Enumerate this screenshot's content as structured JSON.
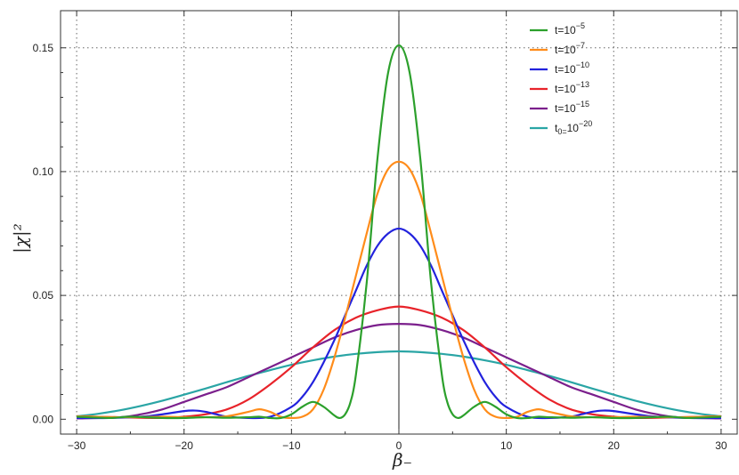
{
  "chart_data": {
    "type": "line",
    "xlabel": "β₋",
    "ylabel": "|χ|²",
    "xlim": [
      -31.5,
      31.5
    ],
    "ylim": [
      -0.006,
      0.165
    ],
    "x_ticks": [
      -30,
      -20,
      -10,
      0,
      10,
      20,
      30
    ],
    "x_tick_labels": [
      "−30",
      "−20",
      "−10",
      "0",
      "10",
      "20",
      "30"
    ],
    "y_ticks": [
      0.0,
      0.05,
      0.1,
      0.15
    ],
    "y_tick_labels": [
      "0.00",
      "0.05",
      "0.10",
      "0.15"
    ],
    "grid": "dotted",
    "legend_position": "top-right",
    "series": [
      {
        "name": "t=10⁻⁵",
        "label_main": "t=10",
        "label_sup": "−5",
        "label_sub": "",
        "color": "#2ca02c",
        "x": [
          -30,
          -27,
          -25,
          -22,
          -20,
          -18,
          -16,
          -14,
          -13,
          -12,
          -11,
          -10,
          -9,
          -8,
          -7,
          -6,
          -5.5,
          -5,
          -4.5,
          -4,
          -3,
          -2,
          -1,
          0,
          1,
          2,
          3,
          4,
          4.5,
          5,
          5.5,
          6,
          7,
          8,
          9,
          10,
          11,
          12,
          13,
          14,
          16,
          18,
          20,
          22,
          25,
          27,
          30
        ],
        "y": [
          0.001,
          0.0005,
          0.001,
          0.0005,
          0.0005,
          0.0008,
          0.0006,
          0.0008,
          0.001,
          0.0005,
          0.0005,
          0.002,
          0.005,
          0.007,
          0.005,
          0.0015,
          0.0005,
          0.002,
          0.007,
          0.018,
          0.055,
          0.105,
          0.14,
          0.151,
          0.14,
          0.105,
          0.055,
          0.018,
          0.007,
          0.002,
          0.0005,
          0.0015,
          0.005,
          0.007,
          0.005,
          0.002,
          0.0005,
          0.0005,
          0.001,
          0.0008,
          0.0006,
          0.0008,
          0.0005,
          0.0005,
          0.001,
          0.0005,
          0.001
        ]
      },
      {
        "name": "t=10⁻⁷",
        "label_main": "t=10",
        "label_sup": "−7",
        "label_sub": "",
        "color": "#ff8c1a",
        "x": [
          -30,
          -26,
          -22,
          -20,
          -18,
          -16,
          -14,
          -13,
          -12,
          -11,
          -10,
          -9,
          -8,
          -7,
          -6,
          -5,
          -4,
          -3,
          -2,
          -1,
          0,
          1,
          2,
          3,
          4,
          5,
          6,
          7,
          8,
          9,
          10,
          11,
          12,
          13,
          14,
          16,
          18,
          20,
          22,
          26,
          30
        ],
        "y": [
          0.0012,
          0.0008,
          0.001,
          0.0008,
          0.0008,
          0.0012,
          0.003,
          0.004,
          0.003,
          0.001,
          0.0005,
          0.001,
          0.004,
          0.012,
          0.025,
          0.041,
          0.058,
          0.075,
          0.091,
          0.101,
          0.104,
          0.101,
          0.091,
          0.075,
          0.058,
          0.041,
          0.025,
          0.012,
          0.004,
          0.001,
          0.0005,
          0.001,
          0.003,
          0.004,
          0.003,
          0.0012,
          0.0008,
          0.0008,
          0.001,
          0.0008,
          0.0012
        ]
      },
      {
        "name": "t=10⁻¹⁰",
        "label_main": "t=10",
        "label_sup": "−10",
        "label_sub": "",
        "color": "#2222dd",
        "x": [
          -30,
          -27,
          -24,
          -22,
          -20,
          -19,
          -18,
          -17,
          -16,
          -14,
          -12,
          -10,
          -9,
          -8,
          -7,
          -6,
          -5,
          -4,
          -3,
          -2,
          -1,
          0,
          1,
          2,
          3,
          4,
          5,
          6,
          7,
          8,
          9,
          10,
          12,
          14,
          16,
          17,
          18,
          19,
          20,
          22,
          24,
          27,
          30
        ],
        "y": [
          0.0005,
          0.0005,
          0.001,
          0.002,
          0.0033,
          0.0035,
          0.003,
          0.002,
          0.001,
          0.0005,
          0.001,
          0.005,
          0.009,
          0.015,
          0.023,
          0.032,
          0.042,
          0.052,
          0.062,
          0.07,
          0.075,
          0.077,
          0.075,
          0.07,
          0.062,
          0.052,
          0.042,
          0.032,
          0.023,
          0.015,
          0.009,
          0.005,
          0.001,
          0.0005,
          0.001,
          0.002,
          0.003,
          0.0035,
          0.0033,
          0.002,
          0.001,
          0.0005,
          0.0005
        ]
      },
      {
        "name": "t=10⁻¹³",
        "label_main": "t=10",
        "label_sup": "−13",
        "label_sub": "",
        "color": "#e8232a",
        "x": [
          -30,
          -26,
          -22,
          -20,
          -18,
          -16,
          -14,
          -12,
          -10,
          -8,
          -6,
          -4,
          -2,
          0,
          2,
          4,
          6,
          8,
          10,
          12,
          14,
          16,
          18,
          20,
          22,
          26,
          30
        ],
        "y": [
          0.0012,
          0.0008,
          0.0005,
          0.001,
          0.002,
          0.004,
          0.008,
          0.014,
          0.021,
          0.029,
          0.036,
          0.041,
          0.044,
          0.0455,
          0.044,
          0.041,
          0.036,
          0.029,
          0.021,
          0.014,
          0.008,
          0.004,
          0.002,
          0.001,
          0.0005,
          0.0008,
          0.0012
        ]
      },
      {
        "name": "t=10⁻¹⁵",
        "label_main": "t=10",
        "label_sup": "−15",
        "label_sub": "",
        "color": "#7b1f8c",
        "x": [
          -30,
          -26,
          -24,
          -22,
          -20,
          -18,
          -16,
          -14,
          -12,
          -10,
          -8,
          -6,
          -4,
          -2,
          0,
          2,
          4,
          6,
          8,
          10,
          12,
          14,
          16,
          18,
          20,
          22,
          24,
          26,
          30
        ],
        "y": [
          0.0003,
          0.0008,
          0.002,
          0.004,
          0.007,
          0.01,
          0.013,
          0.017,
          0.021,
          0.025,
          0.029,
          0.033,
          0.036,
          0.038,
          0.0385,
          0.038,
          0.036,
          0.033,
          0.029,
          0.025,
          0.021,
          0.017,
          0.013,
          0.01,
          0.007,
          0.004,
          0.002,
          0.0008,
          0.0003
        ]
      },
      {
        "name": "t₀=10⁻²⁰",
        "label_main": "t",
        "label_sup": "−20",
        "label_sub": "0=",
        "label_tail": "10",
        "color": "#2aa5a5",
        "x": [
          -30,
          -28,
          -26,
          -24,
          -22,
          -20,
          -18,
          -16,
          -14,
          -12,
          -10,
          -8,
          -6,
          -4,
          -2,
          0,
          2,
          4,
          6,
          8,
          10,
          12,
          14,
          16,
          18,
          20,
          22,
          24,
          26,
          28,
          30
        ],
        "y": [
          0.0012,
          0.0022,
          0.0036,
          0.0054,
          0.0075,
          0.0099,
          0.0124,
          0.015,
          0.0175,
          0.0198,
          0.022,
          0.0238,
          0.0253,
          0.0264,
          0.0271,
          0.0274,
          0.0271,
          0.0264,
          0.0253,
          0.0238,
          0.022,
          0.0198,
          0.0175,
          0.015,
          0.0124,
          0.0099,
          0.0075,
          0.0054,
          0.0036,
          0.0022,
          0.0012
        ]
      }
    ]
  }
}
